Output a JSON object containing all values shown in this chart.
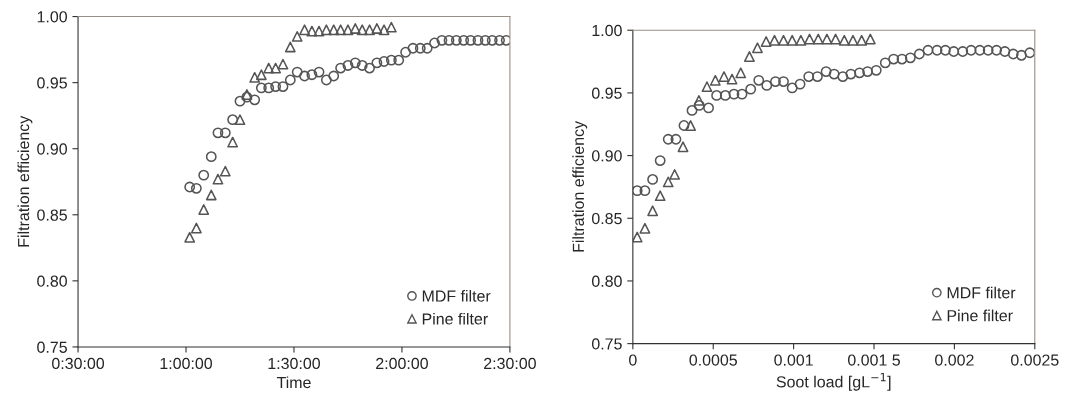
{
  "chart_data": [
    {
      "type": "scatter",
      "xlabel": "Time",
      "ylabel": "Filtration efficiency",
      "xlim": [
        0.5,
        2.5
      ],
      "ylim": [
        0.75,
        1.0
      ],
      "xticks": [
        {
          "value": 0.5,
          "label": "0:30:00"
        },
        {
          "value": 1.0,
          "label": "1:00:00"
        },
        {
          "value": 1.5,
          "label": "1:30:00"
        },
        {
          "value": 2.0,
          "label": "2:00:00"
        },
        {
          "value": 2.5,
          "label": "2:30:00"
        }
      ],
      "yticks": [
        {
          "value": 0.75,
          "label": "0.75"
        },
        {
          "value": 0.8,
          "label": "0.80"
        },
        {
          "value": 0.85,
          "label": "0.85"
        },
        {
          "value": 0.9,
          "label": "0.90"
        },
        {
          "value": 0.95,
          "label": "0.95"
        },
        {
          "value": 1.0,
          "label": "1.00"
        }
      ],
      "legend": "bottom right",
      "series": [
        {
          "name": "MDF filter",
          "color": "#555555",
          "marker": "circle",
          "x": [
            1.017,
            1.048,
            1.082,
            1.117,
            1.148,
            1.182,
            1.216,
            1.25,
            1.282,
            1.318,
            1.349,
            1.383,
            1.415,
            1.449,
            1.483,
            1.515,
            1.549,
            1.583,
            1.616,
            1.65,
            1.684,
            1.716,
            1.75,
            1.784,
            1.816,
            1.85,
            1.884,
            1.917,
            1.951,
            1.985,
            2.017,
            2.051,
            2.085,
            2.117,
            2.151,
            2.185,
            2.218,
            2.252,
            2.286,
            2.318,
            2.352,
            2.386,
            2.418,
            2.452,
            2.483
          ],
          "values": [
            0.871,
            0.87,
            0.88,
            0.894,
            0.912,
            0.912,
            0.922,
            0.936,
            0.939,
            0.937,
            0.946,
            0.946,
            0.947,
            0.947,
            0.952,
            0.958,
            0.955,
            0.956,
            0.958,
            0.952,
            0.955,
            0.961,
            0.963,
            0.965,
            0.963,
            0.961,
            0.965,
            0.966,
            0.967,
            0.967,
            0.973,
            0.976,
            0.976,
            0.976,
            0.98,
            0.982,
            0.982,
            0.982,
            0.982,
            0.982,
            0.982,
            0.982,
            0.982,
            0.982,
            0.982
          ]
        },
        {
          "name": "Pine filter",
          "color": "#555555",
          "marker": "triangle",
          "x": [
            1.017,
            1.048,
            1.082,
            1.117,
            1.148,
            1.182,
            1.216,
            1.25,
            1.282,
            1.318,
            1.349,
            1.383,
            1.415,
            1.449,
            1.483,
            1.515,
            1.549,
            1.583,
            1.616,
            1.65,
            1.684,
            1.716,
            1.75,
            1.784,
            1.816,
            1.85,
            1.884,
            1.917,
            1.951
          ],
          "values": [
            0.833,
            0.84,
            0.854,
            0.865,
            0.877,
            0.883,
            0.905,
            0.922,
            0.941,
            0.954,
            0.956,
            0.961,
            0.961,
            0.964,
            0.977,
            0.985,
            0.99,
            0.989,
            0.989,
            0.99,
            0.99,
            0.99,
            0.99,
            0.991,
            0.99,
            0.99,
            0.991,
            0.99,
            0.992
          ]
        }
      ]
    },
    {
      "type": "scatter",
      "xlabel": "Soot load [gL$^{−1}$]",
      "ylabel": "Filtration efficiency",
      "xlim": [
        0,
        0.0025
      ],
      "ylim": [
        0.75,
        1.0
      ],
      "xticks": [
        0,
        0.0005,
        0.001,
        {
          "value": 0.0015,
          "label": "0.001 5"
        },
        0.002,
        0.0025
      ],
      "yticks": [
        {
          "value": 0.75,
          "label": "0.75"
        },
        {
          "value": 0.8,
          "label": "0.80"
        },
        {
          "value": 0.85,
          "label": "0.85"
        },
        {
          "value": 0.9,
          "label": "0.90"
        },
        {
          "value": 0.95,
          "label": "0.95"
        },
        {
          "value": 1.0,
          "label": "1.00"
        }
      ],
      "legend": "bottom right",
      "series": [
        {
          "name": "MDF filter",
          "color": "#555555",
          "marker": "circle",
          "x": [
            2.7e-05,
            7.5e-05,
            0.000123,
            0.00017,
            0.00022,
            0.000268,
            0.000318,
            0.000368,
            0.000413,
            0.000471,
            0.000521,
            0.000575,
            0.000629,
            0.000679,
            0.000733,
            0.000783,
            0.000833,
            0.000887,
            0.000937,
            0.000991,
            0.00104,
            0.001094,
            0.001148,
            0.001202,
            0.001252,
            0.001306,
            0.001356,
            0.00141,
            0.00146,
            0.001514,
            0.00157,
            0.001622,
            0.001674,
            0.001726,
            0.001782,
            0.001836,
            0.001892,
            0.001944,
            0.001996,
            0.002052,
            0.002104,
            0.002158,
            0.00221,
            0.002262,
            0.002314,
            0.002366,
            0.002417,
            0.002469
          ],
          "values": [
            0.872,
            0.872,
            0.881,
            0.896,
            0.913,
            0.913,
            0.924,
            0.936,
            0.94,
            0.938,
            0.948,
            0.948,
            0.949,
            0.949,
            0.953,
            0.96,
            0.956,
            0.959,
            0.959,
            0.954,
            0.957,
            0.963,
            0.963,
            0.967,
            0.965,
            0.963,
            0.965,
            0.966,
            0.967,
            0.968,
            0.974,
            0.977,
            0.977,
            0.978,
            0.981,
            0.984,
            0.984,
            0.984,
            0.983,
            0.983,
            0.984,
            0.984,
            0.984,
            0.984,
            0.983,
            0.981,
            0.98,
            0.982
          ]
        },
        {
          "name": "Pine filter",
          "color": "#555555",
          "marker": "triangle",
          "x": [
            2.7e-05,
            7.5e-05,
            0.000123,
            0.00017,
            0.00022,
            0.00026,
            0.000312,
            0.000359,
            0.000411,
            0.000461,
            0.000513,
            0.000567,
            0.000617,
            0.000671,
            0.000725,
            0.000775,
            0.000829,
            0.000881,
            0.000937,
            0.000991,
            0.001045,
            0.001099,
            0.001153,
            0.001207,
            0.001261,
            0.001315,
            0.001369,
            0.001423,
            0.001477
          ],
          "values": [
            0.835,
            0.842,
            0.856,
            0.868,
            0.879,
            0.885,
            0.907,
            0.924,
            0.944,
            0.955,
            0.96,
            0.963,
            0.961,
            0.966,
            0.979,
            0.986,
            0.991,
            0.992,
            0.992,
            0.992,
            0.992,
            0.993,
            0.993,
            0.993,
            0.993,
            0.992,
            0.992,
            0.992,
            0.993
          ]
        }
      ]
    }
  ]
}
